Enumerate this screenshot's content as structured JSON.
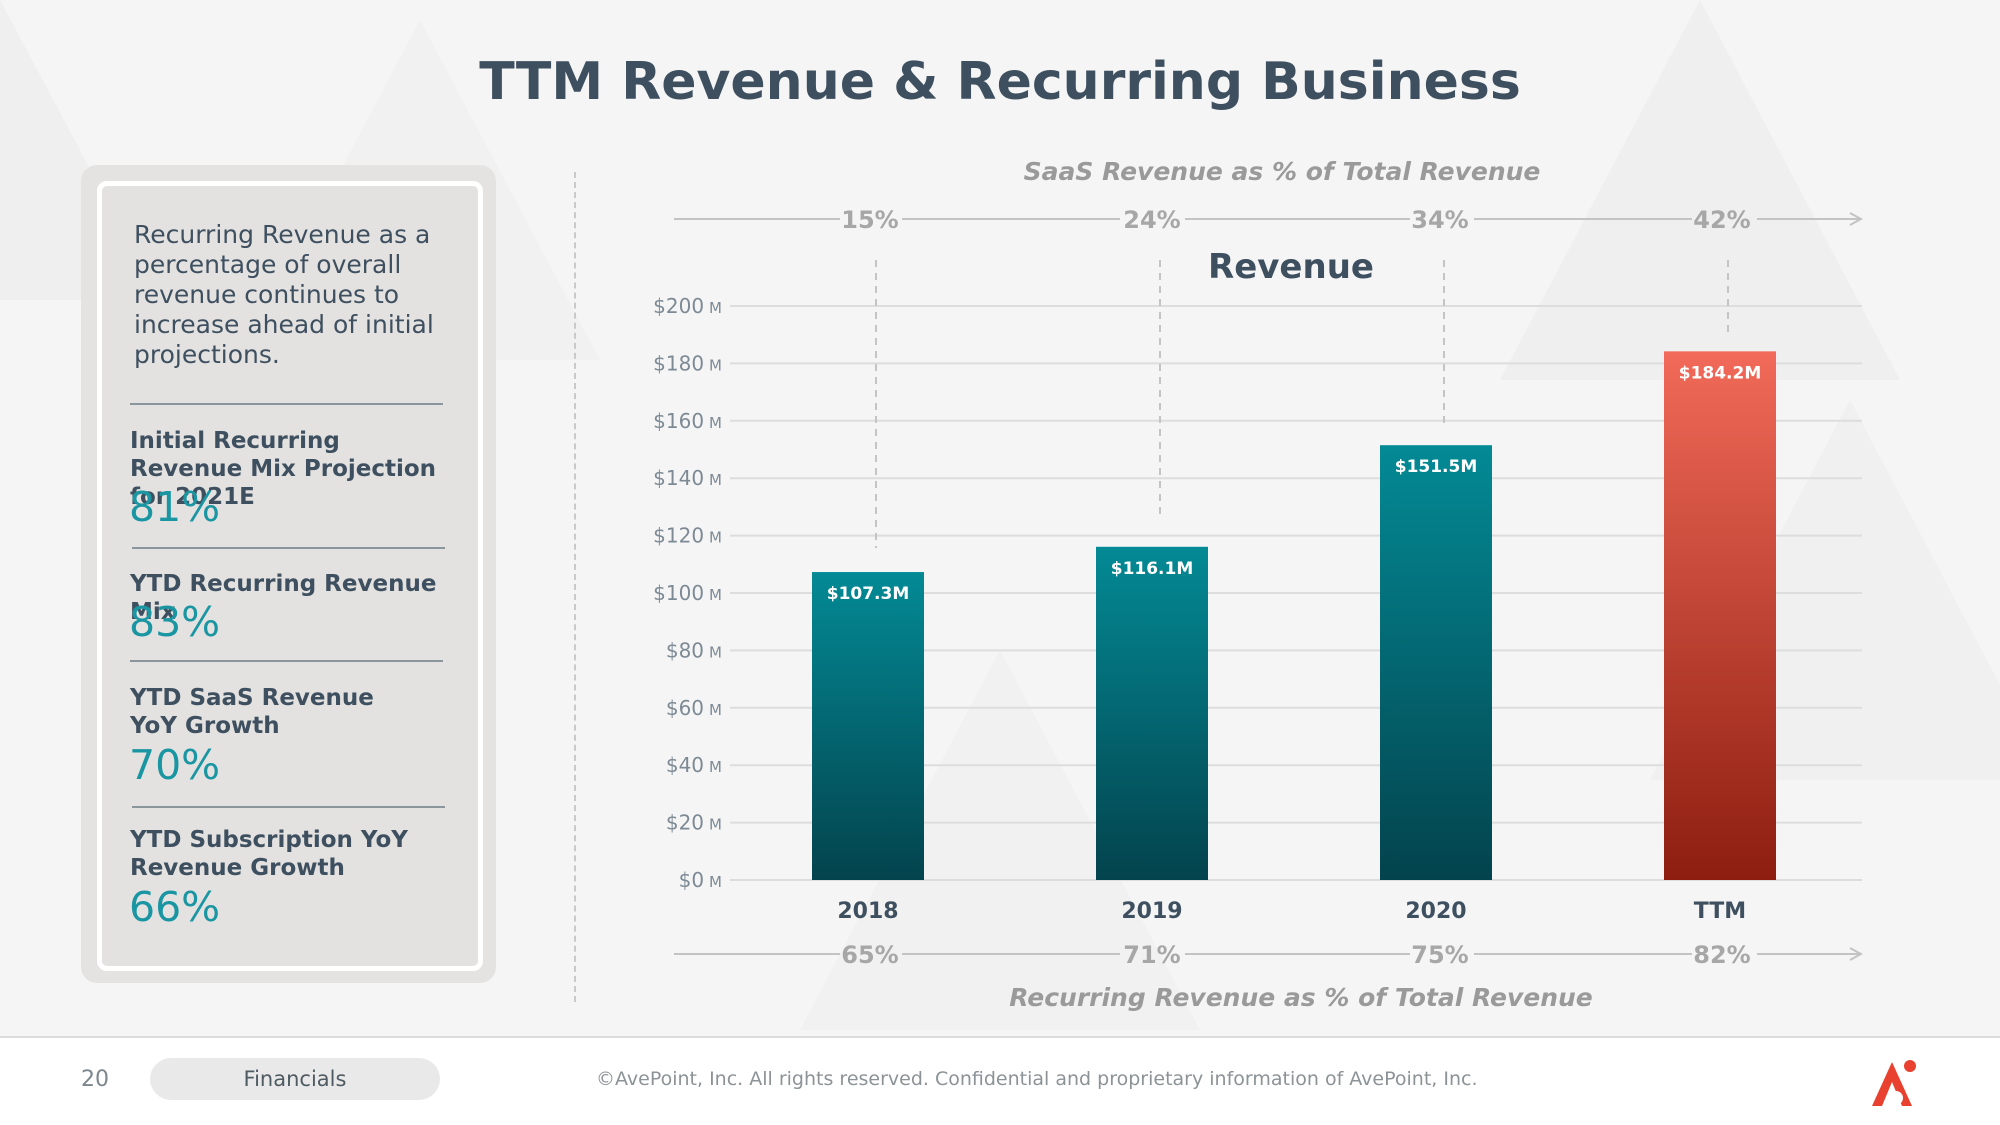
{
  "title": "TTM Revenue & Recurring Business",
  "panel": {
    "intro": "Recurring Revenue as a percentage of overall revenue continues to increase ahead of initial projections.",
    "metrics": [
      {
        "label": "Initial Recurring Revenue Mix Projection for 2021E",
        "value": "81%"
      },
      {
        "label": "YTD Recurring Revenue Mix",
        "value": "83%"
      },
      {
        "label": "YTD SaaS Revenue YoY Growth",
        "value": "70%"
      },
      {
        "label": "YTD Subscription YoY Revenue Growth",
        "value": "66%"
      }
    ]
  },
  "chart_data": {
    "type": "bar",
    "title": "Revenue",
    "categories": [
      "2018",
      "2019",
      "2020",
      "TTM"
    ],
    "series": [
      {
        "values": [
          107.3,
          116.1,
          151.5,
          184.2
        ]
      }
    ],
    "data_labels": [
      "$107.3M",
      "$116.1M",
      "$151.5M",
      "$184.2M"
    ],
    "y_ticks": [
      "$0",
      "$20",
      "$40",
      "$60",
      "$80",
      "$100",
      "$120",
      "$140",
      "$160",
      "$180",
      "$200"
    ],
    "y_unit": "M",
    "ylim": [
      0,
      200
    ],
    "grid": true,
    "saas_title": "SaaS Revenue as % of Total Revenue",
    "saas_pct": [
      "15%",
      "24%",
      "34%",
      "42%"
    ],
    "recurring_title": "Recurring Revenue as % of Total Revenue",
    "recurring_pct": [
      "65%",
      "71%",
      "75%",
      "82%"
    ],
    "colors": {
      "teal_top": "#038a95",
      "teal_bottom": "#03434d",
      "red_top": "#f26a59",
      "red_bottom": "#8d1e10",
      "grid": "#dddddd",
      "tick": "#7d8a95",
      "arrow": "#c3c3c3",
      "pct": "#a7a7a7"
    }
  },
  "footer": {
    "page": "20",
    "section": "Financials",
    "copyright": "©AvePoint, Inc. All rights reserved. Confidential and proprietary information of AvePoint, Inc."
  },
  "logo": {
    "icon": "avepoint-logo-icon",
    "color": "#e8412f"
  }
}
